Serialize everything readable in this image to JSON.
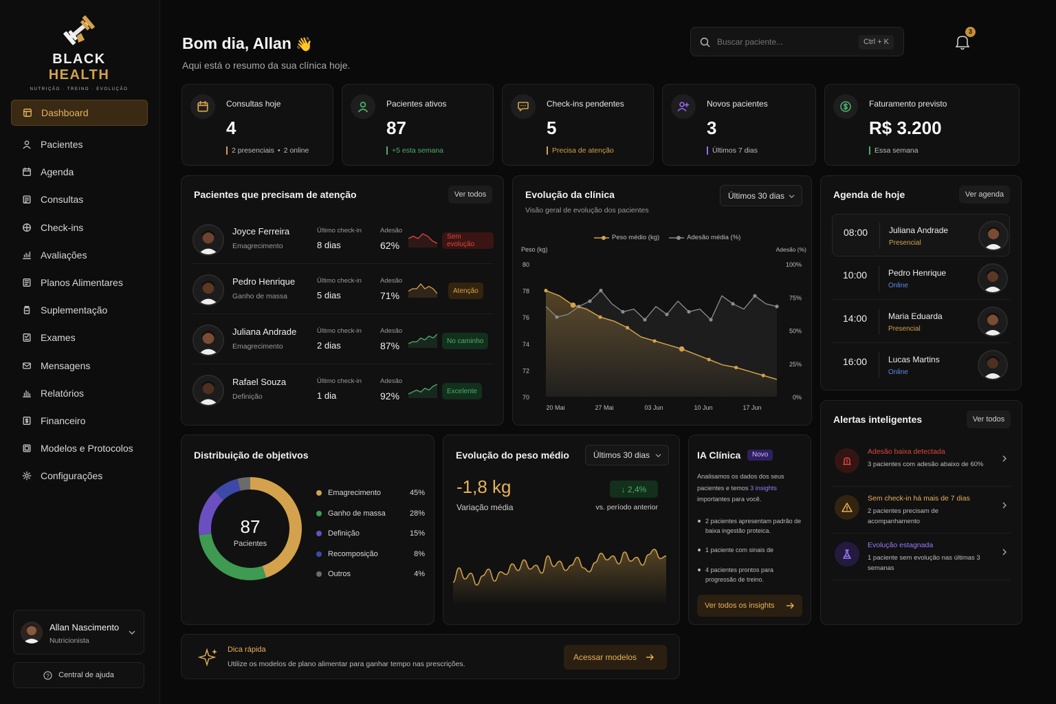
{
  "brand": {
    "name": "BLACK HEALTH",
    "tagline": "NUTRIÇÃO · TREINO · EVOLUÇÃO"
  },
  "sidebar": {
    "items": [
      {
        "label": "Dashboard",
        "icon": "dashboard-icon",
        "active": true
      },
      {
        "label": "Pacientes",
        "icon": "user-icon"
      },
      {
        "label": "Agenda",
        "icon": "calendar-icon"
      },
      {
        "label": "Consultas",
        "icon": "clipboard-icon"
      },
      {
        "label": "Check-ins",
        "icon": "checkin-icon"
      },
      {
        "label": "Avaliações",
        "icon": "chart-hand-icon"
      },
      {
        "label": "Planos Alimentares",
        "icon": "meal-plan-icon"
      },
      {
        "label": "Suplementação",
        "icon": "supplement-icon"
      },
      {
        "label": "Exames",
        "icon": "exam-icon"
      },
      {
        "label": "Mensagens",
        "icon": "mail-icon"
      },
      {
        "label": "Relatórios",
        "icon": "bar-chart-icon"
      },
      {
        "label": "Financeiro",
        "icon": "finance-icon"
      },
      {
        "label": "Modelos e Protocolos",
        "icon": "template-icon"
      },
      {
        "label": "Configurações",
        "icon": "gear-icon"
      }
    ],
    "user": {
      "name": "Allan Nascimento",
      "role": "Nutricionista"
    },
    "help_label": "Central de ajuda"
  },
  "header": {
    "greeting": "Bom dia, Allan",
    "greeting_emoji": "👋",
    "subtitle": "Aqui está o resumo da sua clínica hoje.",
    "search_placeholder": "Buscar paciente...",
    "search_shortcut": "Ctrl + K",
    "notifications_count": "3"
  },
  "stats": [
    {
      "label": "Consultas hoje",
      "value": "4",
      "sub_a": "2 presenciais",
      "sub_b": "2 online",
      "color": "#d4a24c",
      "icon": "calendar-icon"
    },
    {
      "label": "Pacientes ativos",
      "value": "87",
      "sub": "+5 esta semana",
      "color": "#4caf6a",
      "icon": "user-icon"
    },
    {
      "label": "Check-ins pendentes",
      "value": "5",
      "sub": "Precisa de atenção",
      "color": "#d4a24c",
      "icon": "chat-icon"
    },
    {
      "label": "Novos pacientes",
      "value": "3",
      "sub": "Últimos 7 dias",
      "color": "#9b6bff",
      "icon": "user-plus-icon"
    },
    {
      "label": "Faturamento previsto",
      "value": "R$ 3.200",
      "sub": "Essa semana",
      "color": "#4caf6a",
      "icon": "dollar-icon"
    }
  ],
  "attention": {
    "title": "Pacientes que precisam de atenção",
    "view_all": "Ver todos",
    "last_checkin_label": "Último check-in",
    "adherence_label": "Adesão",
    "patients": [
      {
        "name": "Joyce Ferreira",
        "goal": "Emagrecimento",
        "last_checkin": "8 dias",
        "adherence": "62%",
        "status": "Sem evolução",
        "status_color": "#e0473f",
        "status_bg": "#3a1513",
        "trend": [
          6,
          5,
          6,
          4,
          5,
          7,
          8
        ]
      },
      {
        "name": "Pedro Henrique",
        "goal": "Ganho de massa",
        "last_checkin": "5 dias",
        "adherence": "71%",
        "status": "Atenção",
        "status_color": "#e0a24a",
        "status_bg": "#33240f",
        "trend": [
          6,
          5,
          5,
          3,
          5,
          4,
          5,
          7
        ]
      },
      {
        "name": "Juliana Andrade",
        "goal": "Emagrecimento",
        "last_checkin": "2 dias",
        "adherence": "87%",
        "status": "No caminho",
        "status_color": "#4caf6a",
        "status_bg": "#12301c",
        "trend": [
          7,
          6,
          6,
          4,
          5,
          3,
          4,
          2
        ]
      },
      {
        "name": "Rafael Souza",
        "goal": "Definição",
        "last_checkin": "1 dia",
        "adherence": "92%",
        "status": "Excelente",
        "status_color": "#4caf6a",
        "status_bg": "#12301c",
        "trend": [
          7,
          6,
          5,
          6,
          4,
          5,
          3,
          2
        ]
      }
    ]
  },
  "evolution": {
    "title": "Evolução da clínica",
    "subtitle": "Visão geral de evolução dos pacientes",
    "period": "Últimos 30 dias",
    "legend_weight": "Peso médio (kg)",
    "legend_adherence": "Adesão média (%)"
  },
  "chart_data": [
    {
      "type": "line",
      "ylabel": "Peso (kg)",
      "y2label": "Adesão (%)",
      "x_ticks": [
        "20 Mai",
        "27 Mai",
        "03 Jun",
        "10 Jun",
        "17 Jun"
      ],
      "ylim": [
        70,
        80
      ],
      "y_ticks": [
        "80",
        "78",
        "76",
        "74",
        "72",
        "70"
      ],
      "y2lim": [
        0,
        100
      ],
      "y2_ticks": [
        "100%",
        "75%",
        "50%",
        "25%",
        "0%"
      ],
      "series": [
        {
          "name": "Peso médio (kg)",
          "color": "#d4a24c",
          "values": [
            78.0,
            77.6,
            76.9,
            76.6,
            76.0,
            75.7,
            75.2,
            74.5,
            74.2,
            73.9,
            73.6,
            73.2,
            72.8,
            72.4,
            72.2,
            71.9,
            71.6,
            71.3
          ]
        },
        {
          "name": "Adesão média (%)",
          "color": "#8c8c8c",
          "values": [
            68,
            60,
            62,
            68,
            72,
            80,
            70,
            64,
            66,
            58,
            68,
            62,
            72,
            64,
            66,
            58,
            76,
            70,
            66,
            76,
            70,
            68
          ]
        }
      ]
    },
    {
      "type": "pie",
      "title": "Distribuição de objetivos",
      "center_value": "87",
      "center_label": "Pacientes",
      "slices": [
        {
          "name": "Emagrecimento",
          "value": 45,
          "label": "45%",
          "color": "#d4a24c"
        },
        {
          "name": "Ganho de massa",
          "value": 28,
          "label": "28%",
          "color": "#3f9a52"
        },
        {
          "name": "Definição",
          "value": 15,
          "label": "15%",
          "color": "#6a4fc0"
        },
        {
          "name": "Recomposição",
          "value": 8,
          "label": "8%",
          "color": "#3d49a8"
        },
        {
          "name": "Outros",
          "value": 4,
          "label": "4%",
          "color": "#6b6b6b"
        }
      ]
    },
    {
      "type": "area",
      "title": "Evolução do peso médio",
      "color": "#d4a24c",
      "values": [
        50,
        72,
        55,
        64,
        46,
        60,
        70,
        52,
        66,
        62,
        78,
        68,
        84,
        70,
        76,
        64,
        90,
        74,
        82,
        68,
        76,
        88,
        72,
        66,
        80,
        94,
        84,
        90,
        78,
        96,
        82,
        88,
        76,
        92,
        100,
        86,
        90
      ]
    }
  ],
  "weight": {
    "title": "Evolução do peso médio",
    "period": "Últimos 30 dias",
    "value": "-1,8 kg",
    "value_label": "Variação média",
    "delta": "↓ 2,4%",
    "delta_label": "vs. período anterior"
  },
  "agenda": {
    "title": "Agenda de hoje",
    "view": "Ver agenda",
    "items": [
      {
        "time": "08:00",
        "name": "Juliana Andrade",
        "mode": "Presencial",
        "mode_color": "#d4a24c"
      },
      {
        "time": "10:00",
        "name": "Pedro Henrique",
        "mode": "Online",
        "mode_color": "#5b8de8"
      },
      {
        "time": "14:00",
        "name": "Maria Eduarda",
        "mode": "Presencial",
        "mode_color": "#d4a24c"
      },
      {
        "time": "16:00",
        "name": "Lucas Martins",
        "mode": "Online",
        "mode_color": "#5b8de8"
      }
    ]
  },
  "alerts": {
    "title": "Alertas inteligentes",
    "view_all": "Ver todos",
    "items": [
      {
        "title": "Adesão baixa detectada",
        "desc": "3 pacientes com adesão abaixo de 60%",
        "color": "#e0473f",
        "bg": "#351512",
        "icon": "alert-bell-icon"
      },
      {
        "title": "Sem check-in há mais de 7 dias",
        "desc": "2 pacientes precisam de acompanhamento",
        "color": "#e6b25a",
        "bg": "#33240f",
        "icon": "warning-icon"
      },
      {
        "title": "Evolução estagnada",
        "desc": "1 paciente sem evolução nas últimas 3 semanas",
        "color": "#9b7bff",
        "bg": "#241a3d",
        "icon": "flask-icon"
      }
    ]
  },
  "ia": {
    "title": "IA Clínica",
    "badge": "Novo",
    "intro": "Analisamos os dados dos seus pacientes e temos",
    "insights_link": "3 insights",
    "intro_end": "importantes para você.",
    "bullets": [
      "2 pacientes apresentam padrão de baixa ingestão proteica.",
      "1 paciente com sinais de",
      "4 pacientes prontos para progressão de treino."
    ],
    "cta": "Ver todos os insights"
  },
  "tip": {
    "title": "Dica rápida",
    "text": "Utilize os modelos de plano alimentar para ganhar tempo nas prescrições.",
    "cta": "Acessar modelos"
  }
}
